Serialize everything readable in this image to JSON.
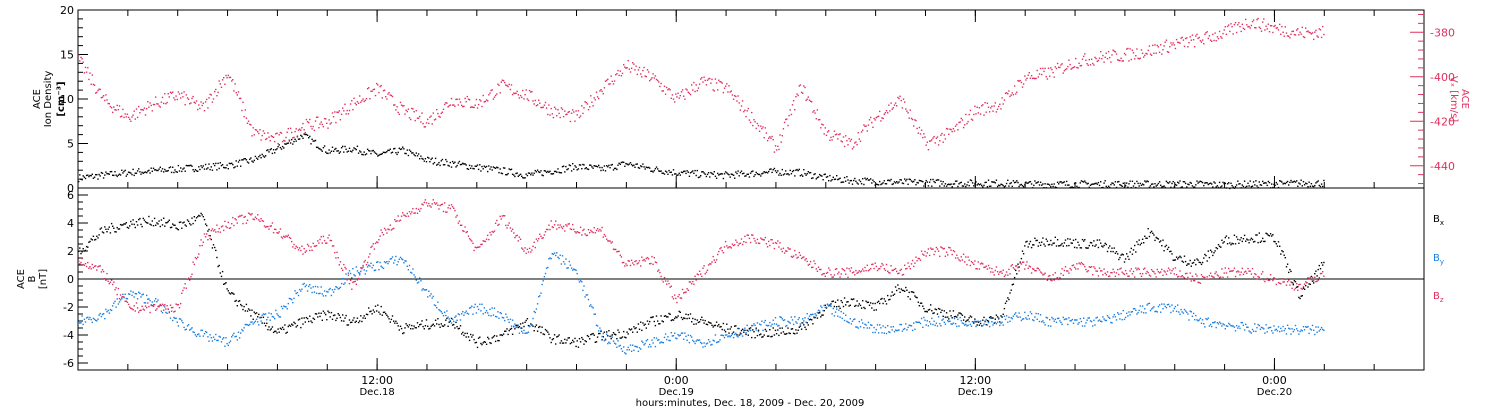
{
  "chart_data": [
    {
      "type": "scatter",
      "panel": "top",
      "left_axis": {
        "label_lines": [
          "ACE",
          "Ion Density",
          "[cm⁻³]"
        ],
        "range": [
          0,
          20
        ],
        "ticks": [
          "0",
          "5",
          "10",
          "15",
          "20"
        ]
      },
      "right_axis": {
        "label_lines": [
          "ACE",
          "Vₓ [km/s]"
        ],
        "range": [
          -450,
          -370
        ],
        "ticks": [
          "-380",
          "-400",
          "-420",
          "-440"
        ]
      },
      "series": [
        {
          "axis": "left",
          "color": "#000000",
          "x_hours": [
            0,
            1,
            2,
            3,
            4,
            5,
            6,
            7,
            8,
            9,
            10,
            11,
            12,
            13,
            14,
            15,
            16,
            17,
            18,
            19,
            20,
            21,
            22,
            23,
            24,
            25,
            26,
            27,
            28,
            29,
            30,
            31,
            32,
            33,
            34,
            35,
            36,
            37,
            38,
            39,
            40,
            41,
            42,
            43,
            44,
            45,
            46,
            47,
            48,
            49,
            50
          ],
          "values": [
            1.2,
            1.5,
            1.8,
            2.0,
            2.2,
            2.4,
            2.6,
            3.2,
            4.5,
            6.0,
            4.2,
            4.5,
            3.8,
            4.3,
            3.2,
            2.8,
            2.4,
            2.0,
            1.5,
            2.0,
            2.5,
            2.2,
            2.8,
            2.2,
            1.8,
            1.6,
            1.5,
            1.7,
            1.9,
            1.8,
            1.2,
            0.9,
            0.8,
            0.7,
            0.7,
            0.6,
            0.6,
            0.6,
            0.5,
            0.5,
            0.5,
            0.5,
            0.5,
            0.5,
            0.5,
            0.5,
            0.4,
            0.5,
            0.5,
            0.6,
            0.6
          ]
        },
        {
          "axis": "right",
          "color": "#e0305f",
          "x_hours": [
            0,
            1,
            2,
            3,
            4,
            5,
            6,
            7,
            8,
            9,
            10,
            11,
            12,
            13,
            14,
            15,
            16,
            17,
            18,
            19,
            20,
            21,
            22,
            23,
            24,
            25,
            26,
            27,
            28,
            29,
            30,
            31,
            32,
            33,
            34,
            35,
            36,
            37,
            38,
            39,
            40,
            41,
            42,
            43,
            44,
            45,
            46,
            47,
            48,
            49,
            50
          ],
          "values": [
            -392,
            -410,
            -418,
            -412,
            -408,
            -414,
            -398,
            -425,
            -428,
            -422,
            -420,
            -412,
            -405,
            -415,
            -420,
            -410,
            -412,
            -404,
            -408,
            -415,
            -418,
            -405,
            -395,
            -400,
            -410,
            -402,
            -405,
            -418,
            -432,
            -404,
            -425,
            -430,
            -418,
            -410,
            -430,
            -425,
            -415,
            -412,
            -400,
            -398,
            -393,
            -391,
            -390,
            -388,
            -385,
            -383,
            -380,
            -375,
            -378,
            -380,
            -380
          ]
        }
      ]
    },
    {
      "type": "scatter",
      "panel": "bottom",
      "left_axis": {
        "label_lines": [
          "ACE",
          "B",
          "[nT]"
        ],
        "range": [
          -6.5,
          6.5
        ],
        "ticks": [
          "-6",
          "-4",
          "-2",
          "0",
          "2",
          "4",
          "6"
        ]
      },
      "legend": [
        {
          "label": "B",
          "sub": "x",
          "color": "#000000"
        },
        {
          "label": "B",
          "sub": "y",
          "color": "#1a7fe0"
        },
        {
          "label": "B",
          "sub": "z",
          "color": "#e0305f"
        }
      ],
      "series": [
        {
          "name": "Bx",
          "color": "#000000",
          "x_hours": [
            0,
            1,
            2,
            3,
            4,
            5,
            6,
            7,
            8,
            9,
            10,
            11,
            12,
            13,
            14,
            15,
            16,
            17,
            18,
            19,
            20,
            21,
            22,
            23,
            24,
            25,
            26,
            27,
            28,
            29,
            30,
            31,
            32,
            33,
            34,
            35,
            36,
            37,
            38,
            39,
            40,
            41,
            42,
            43,
            44,
            45,
            46,
            47,
            48,
            49,
            50
          ],
          "values": [
            2.0,
            3.5,
            4.0,
            4.2,
            3.8,
            4.5,
            -1.0,
            -2.5,
            -3.8,
            -3.0,
            -2.5,
            -3.0,
            -2.0,
            -3.5,
            -3.2,
            -3.0,
            -4.5,
            -4.0,
            -3.0,
            -4.2,
            -4.5,
            -4.0,
            -3.8,
            -3.0,
            -2.5,
            -3.0,
            -3.5,
            -3.8,
            -3.8,
            -3.5,
            -2.0,
            -1.5,
            -2.0,
            -0.5,
            -2.0,
            -2.5,
            -3.0,
            -2.8,
            2.5,
            2.8,
            2.6,
            2.5,
            1.5,
            3.5,
            1.5,
            1.2,
            2.8,
            3.0,
            3.0,
            -1.2,
            1.2
          ]
        },
        {
          "name": "By",
          "color": "#1a7fe0",
          "x_hours": [
            0,
            1,
            2,
            3,
            4,
            5,
            6,
            7,
            8,
            9,
            10,
            11,
            12,
            13,
            14,
            15,
            16,
            17,
            18,
            19,
            20,
            21,
            22,
            23,
            24,
            25,
            26,
            27,
            28,
            29,
            30,
            31,
            32,
            33,
            34,
            35,
            36,
            37,
            38,
            39,
            40,
            41,
            42,
            43,
            44,
            45,
            46,
            47,
            48,
            49,
            50
          ],
          "values": [
            -3.0,
            -2.5,
            -1.0,
            -1.5,
            -3.0,
            -4.0,
            -4.5,
            -3.0,
            -2.5,
            -0.5,
            -1.0,
            0.5,
            1.0,
            1.5,
            -1.0,
            -3.0,
            -2.0,
            -2.5,
            -4.0,
            2.0,
            0.5,
            -4.0,
            -5.0,
            -4.5,
            -4.0,
            -4.5,
            -4.0,
            -3.5,
            -3.0,
            -3.0,
            -2.0,
            -3.0,
            -3.5,
            -3.5,
            -3.0,
            -3.0,
            -3.0,
            -3.0,
            -2.5,
            -3.0,
            -3.0,
            -3.0,
            -2.5,
            -2.0,
            -2.0,
            -3.0,
            -3.2,
            -3.5,
            -3.5,
            -3.6,
            -3.6
          ]
        },
        {
          "name": "Bz",
          "color": "#e0305f",
          "x_hours": [
            0,
            1,
            2,
            3,
            4,
            5,
            6,
            7,
            8,
            9,
            10,
            11,
            12,
            13,
            14,
            15,
            16,
            17,
            18,
            19,
            20,
            21,
            22,
            23,
            24,
            25,
            26,
            27,
            28,
            29,
            30,
            31,
            32,
            33,
            34,
            35,
            36,
            37,
            38,
            39,
            40,
            41,
            42,
            43,
            44,
            45,
            46,
            47,
            48,
            49,
            50
          ],
          "values": [
            1.5,
            0.5,
            -2.0,
            -2.0,
            -2.0,
            3.0,
            4.0,
            4.5,
            3.5,
            2.0,
            3.0,
            -0.5,
            3.0,
            4.5,
            5.5,
            5.0,
            2.0,
            4.5,
            2.0,
            4.0,
            3.5,
            3.5,
            1.0,
            1.5,
            -1.5,
            0.5,
            2.5,
            3.0,
            2.5,
            1.5,
            0.5,
            0.5,
            1.0,
            0.5,
            2.0,
            2.0,
            1.0,
            0.5,
            1.0,
            0.0,
            1.0,
            0.5,
            0.5,
            0.5,
            0.5,
            0.0,
            0.5,
            0.5,
            0.0,
            -0.5,
            0.5
          ]
        }
      ]
    }
  ],
  "x_axis": {
    "ticks": [
      {
        "hour": 12,
        "time": "12:00",
        "day": "Dec.18"
      },
      {
        "hour": 24,
        "time": "0:00",
        "day": "Dec.19"
      },
      {
        "hour": 36,
        "time": "12:00",
        "day": "Dec.19"
      },
      {
        "hour": 48,
        "time": "0:00",
        "day": "Dec.20"
      }
    ],
    "range_hours": [
      0,
      54
    ],
    "title": "hours:minutes, Dec. 18, 2009 - Dec. 20, 2009"
  }
}
